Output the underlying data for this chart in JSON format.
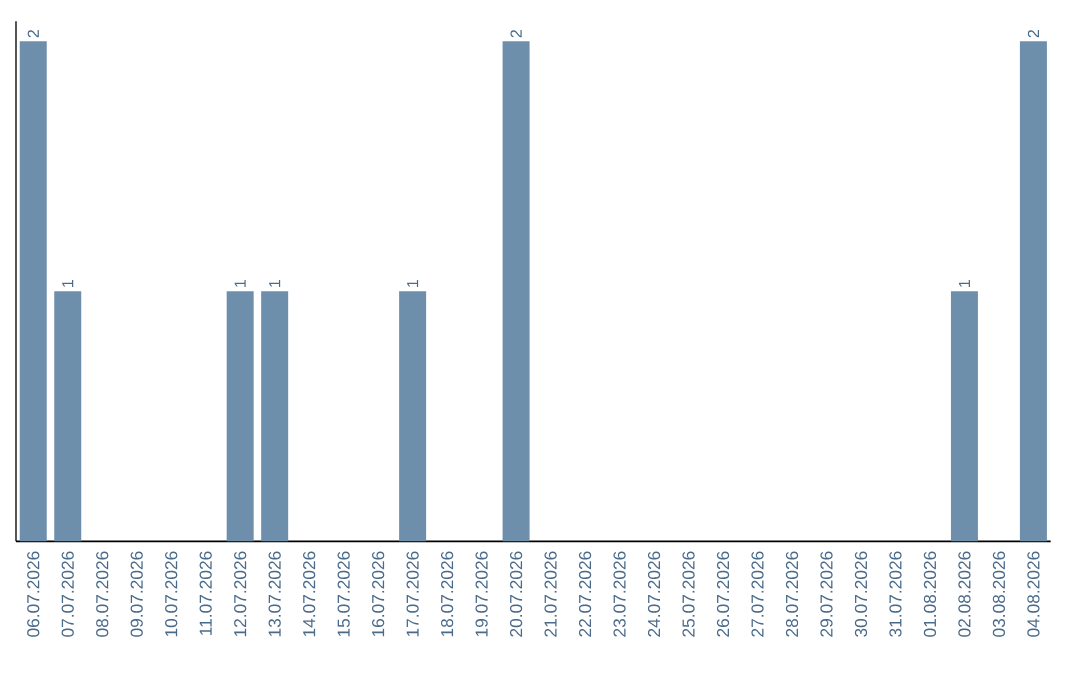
{
  "chart_data": {
    "type": "bar",
    "categories": [
      "06.07.2026",
      "07.07.2026",
      "08.07.2026",
      "09.07.2026",
      "10.07.2026",
      "11.07.2026",
      "12.07.2026",
      "13.07.2026",
      "14.07.2026",
      "15.07.2026",
      "16.07.2026",
      "17.07.2026",
      "18.07.2026",
      "19.07.2026",
      "20.07.2026",
      "21.07.2026",
      "22.07.2026",
      "23.07.2026",
      "24.07.2026",
      "25.07.2026",
      "26.07.2026",
      "27.07.2026",
      "28.07.2026",
      "29.07.2026",
      "30.07.2026",
      "31.07.2026",
      "01.08.2026",
      "02.08.2026",
      "03.08.2026",
      "04.08.2026"
    ],
    "values": [
      2,
      1,
      0,
      0,
      0,
      0,
      1,
      1,
      0,
      0,
      0,
      1,
      0,
      0,
      2,
      0,
      0,
      0,
      0,
      0,
      0,
      0,
      0,
      0,
      0,
      0,
      0,
      1,
      0,
      2
    ],
    "value_labels": [
      "2",
      "1",
      null,
      null,
      null,
      null,
      "1",
      "1",
      null,
      null,
      null,
      "1",
      null,
      null,
      "2",
      null,
      null,
      null,
      null,
      null,
      null,
      null,
      null,
      null,
      null,
      null,
      null,
      "1",
      null,
      "2"
    ],
    "color": "#6d8fac",
    "tick_labels": "x"
  }
}
